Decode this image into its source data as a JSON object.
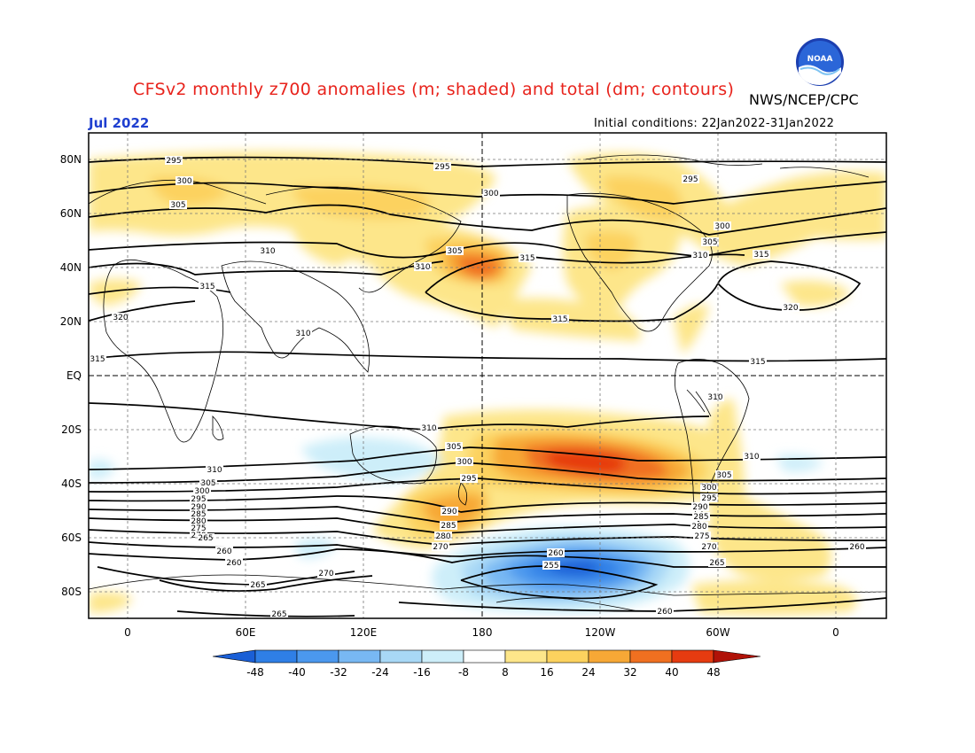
{
  "header": {
    "title": "CFSv2 monthly z700 anomalies (m; shaded) and total (dm; contours)",
    "agency": "NWS/NCEP/CPC",
    "month": "Jul 2022",
    "initial_conditions": "Initial conditions: 22Jan2022-31Jan2022",
    "logo_text": "NOAA"
  },
  "axes": {
    "lat_labels": [
      "80N",
      "60N",
      "40N",
      "20N",
      "EQ",
      "20S",
      "40S",
      "60S",
      "80S"
    ],
    "lon_labels": [
      "0",
      "60E",
      "120E",
      "180",
      "120W",
      "60W",
      "0"
    ]
  },
  "colorbar": {
    "ticks": [
      "-48",
      "-40",
      "-32",
      "-24",
      "-16",
      "-8",
      "8",
      "16",
      "24",
      "32",
      "40",
      "48"
    ]
  },
  "colors": {
    "c_m48": "#1a5fd6",
    "c_m40": "#2f7fe6",
    "c_m32": "#4b98ee",
    "c_m24": "#78b8f3",
    "c_m16": "#a8d8f6",
    "c_m8": "#cdeef9",
    "c_0": "#ffffff",
    "c_8": "#fde68a",
    "c_16": "#fcd25e",
    "c_24": "#f7a836",
    "c_32": "#f07020",
    "c_40": "#e63b10",
    "c_48": "#b01208"
  },
  "contour_labels": [
    "295",
    "295",
    "295",
    "300",
    "300",
    "300",
    "305",
    "305",
    "305",
    "310",
    "310",
    "310",
    "310",
    "310",
    "315",
    "315",
    "315",
    "315",
    "315",
    "315",
    "320",
    "320",
    "310",
    "305",
    "300",
    "295",
    "290",
    "285",
    "280",
    "275",
    "270",
    "265",
    "260",
    "255",
    "260",
    "265",
    "270",
    "275",
    "280",
    "285",
    "290",
    "295",
    "300",
    "305",
    "310",
    "260",
    "260",
    "265",
    "265",
    "270",
    "260",
    "265",
    "270",
    "275",
    "280",
    "285",
    "290",
    "295",
    "300",
    "305",
    "310"
  ]
}
